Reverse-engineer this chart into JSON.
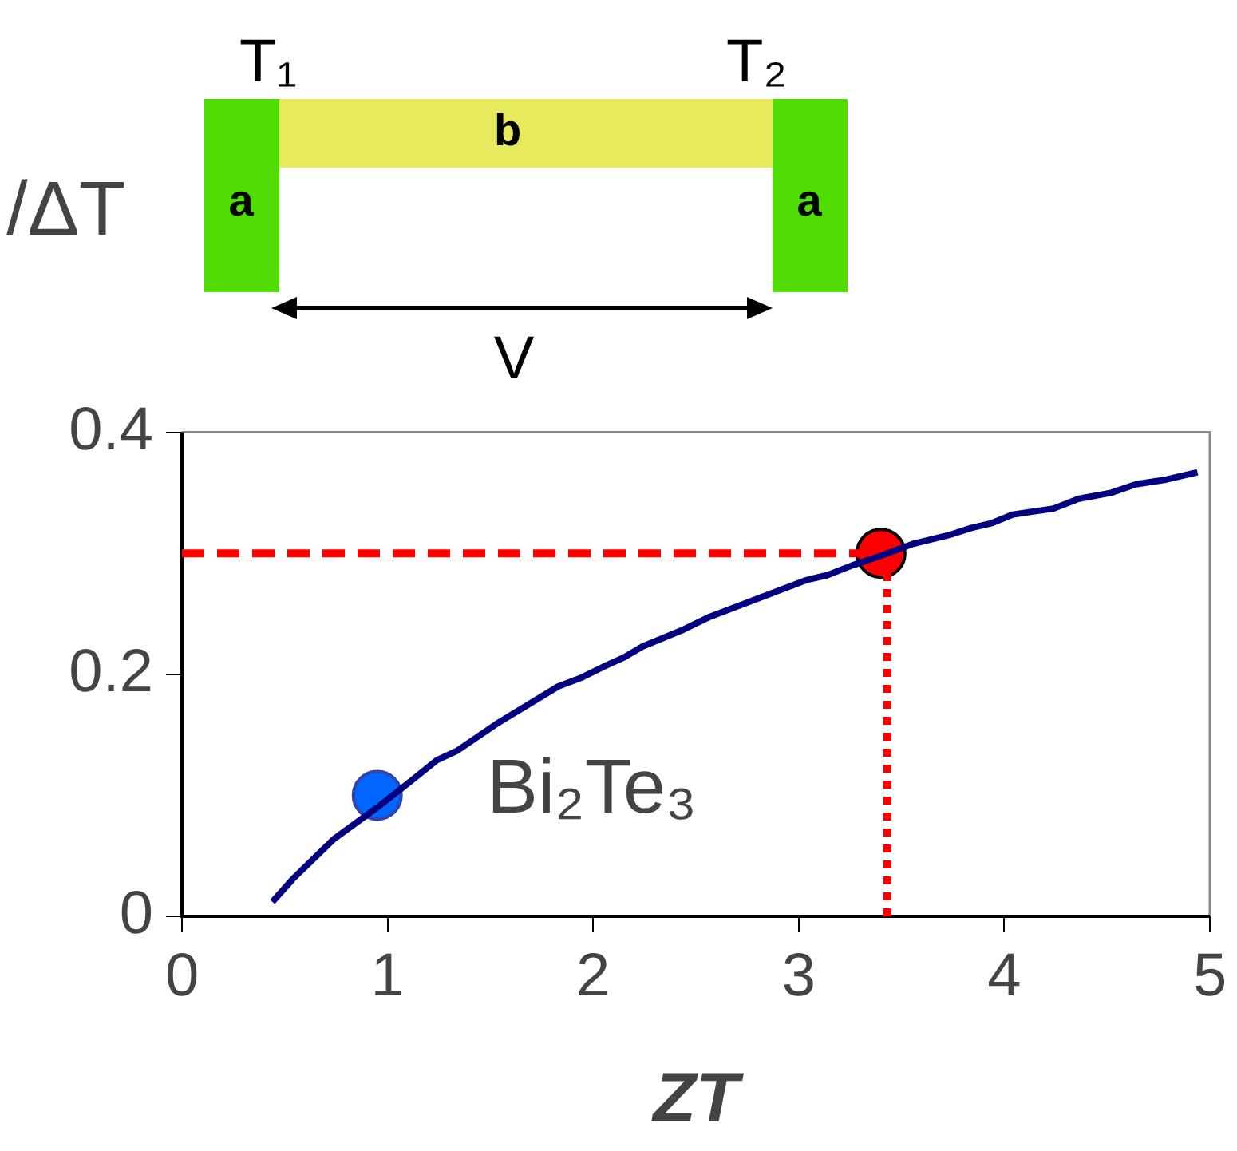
{
  "chart_data": {
    "type": "line",
    "xlabel": "ZT",
    "ylabel": "/ΔT",
    "xlim": [
      0,
      5
    ],
    "xticks": [
      0,
      1,
      2,
      3,
      4,
      5
    ],
    "ylim": [
      0,
      0.4
    ],
    "yticks": [
      0,
      0.2,
      0.4
    ],
    "grid": false,
    "legend": false,
    "series": [
      {
        "color": "#000080",
        "marker": "none",
        "line_style": "solid",
        "x": [
          0.44,
          0.54,
          0.74,
          0.95,
          1.13,
          1.24,
          1.34,
          1.53,
          1.83,
          1.94,
          2.06,
          2.15,
          2.24,
          2.44,
          2.56,
          2.93,
          3.04,
          3.14,
          3.26,
          3.4,
          3.56,
          3.73,
          3.84,
          3.94,
          4.04,
          4.24,
          4.36,
          4.52,
          4.64,
          4.79,
          4.94
        ],
        "values": [
          0.012,
          0.031,
          0.064,
          0.09,
          0.114,
          0.129,
          0.137,
          0.159,
          0.19,
          0.197,
          0.207,
          0.214,
          0.223,
          0.237,
          0.247,
          0.271,
          0.278,
          0.282,
          0.29,
          0.298,
          0.308,
          0.315,
          0.321,
          0.325,
          0.332,
          0.337,
          0.345,
          0.35,
          0.357,
          0.361,
          0.367
        ]
      },
      {
        "color": "#ff0000",
        "marker": "none",
        "line_style": "dashed",
        "x": [
          0,
          3.4
        ],
        "values": [
          0.3,
          0.3
        ]
      },
      {
        "color": "#ff0000",
        "marker": "none",
        "line_style": "dotted",
        "x": [
          3.43,
          3.43
        ],
        "values": [
          0,
          0.3
        ]
      },
      {
        "type": "scatter",
        "marker": "circle",
        "x": [
          0.95,
          3.4
        ],
        "values": [
          0.1,
          0.3
        ],
        "colors": [
          "#0066ff",
          "#ff0000"
        ]
      }
    ],
    "annotations": [
      "T₁",
      "T₂",
      "b",
      "a",
      "a",
      "V",
      "Bi₂Te₃"
    ]
  }
}
